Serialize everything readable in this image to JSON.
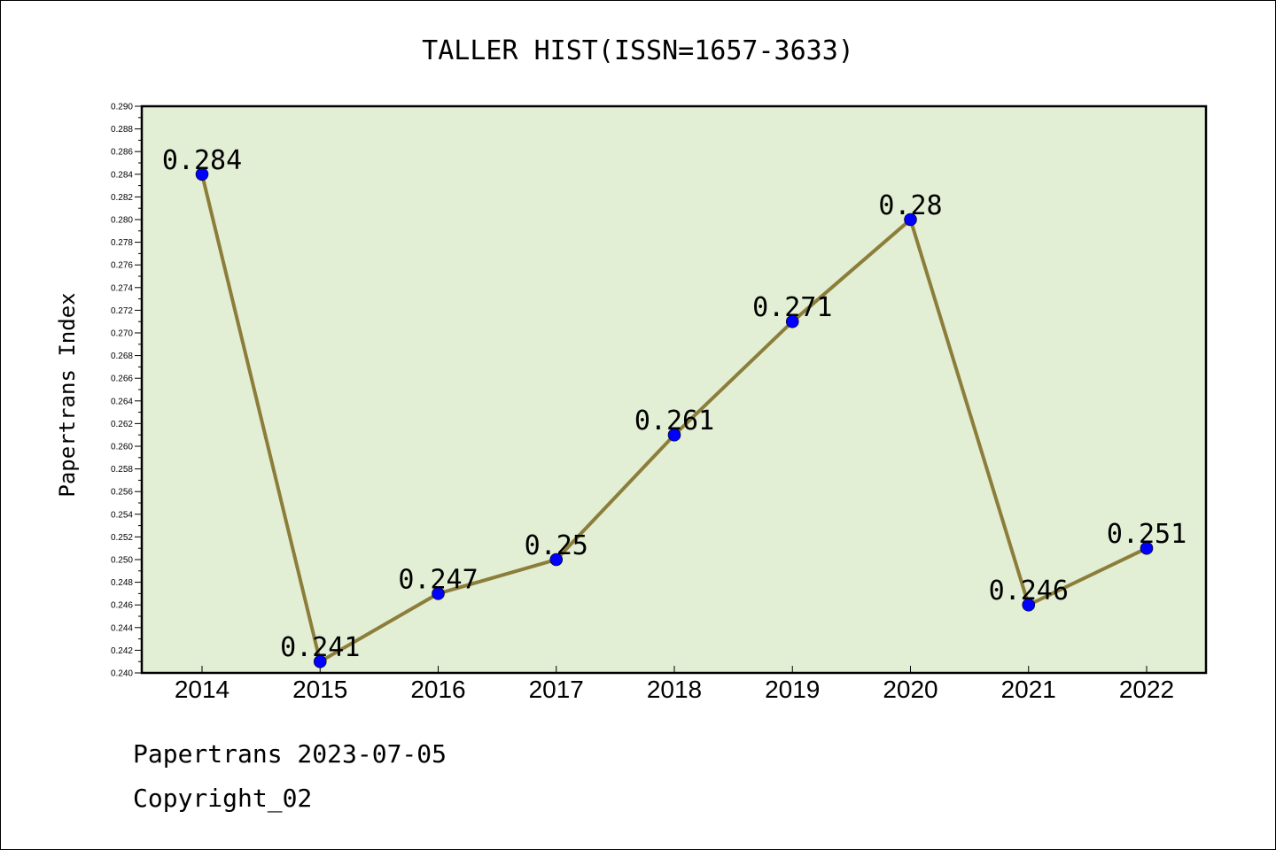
{
  "chart_data": {
    "type": "line",
    "title": "TALLER HIST(ISSN=1657-3633)",
    "xlabel": "",
    "ylabel": "Papertrans Index",
    "categories": [
      "2014",
      "2015",
      "2016",
      "2017",
      "2018",
      "2019",
      "2020",
      "2021",
      "2022"
    ],
    "series": [
      {
        "values": [
          0.284,
          0.241,
          0.247,
          0.25,
          0.261,
          0.271,
          0.28,
          0.246,
          0.251
        ],
        "data_labels": [
          "0.284",
          "0.241",
          "0.247",
          "0.25",
          "0.261",
          "0.271",
          "0.28",
          "0.246",
          "0.251"
        ]
      }
    ],
    "ylim": [
      0.24,
      0.29
    ],
    "yticks": [
      "0.240",
      "0.242",
      "0.244",
      "0.246",
      "0.248",
      "0.250",
      "0.252",
      "0.254",
      "0.256",
      "0.258",
      "0.260",
      "0.262",
      "0.264",
      "0.266",
      "0.268",
      "0.270",
      "0.272",
      "0.274",
      "0.276",
      "0.278",
      "0.280",
      "0.282",
      "0.284",
      "0.286",
      "0.288",
      "0.290"
    ],
    "grid": false,
    "legend": "none",
    "colors": {
      "plot_background": "#e2efd5",
      "line": "#8c7e3a",
      "marker": "#0000ff"
    }
  },
  "footer": {
    "line1": "Papertrans 2023-07-05",
    "line2": "Copyright_02"
  }
}
